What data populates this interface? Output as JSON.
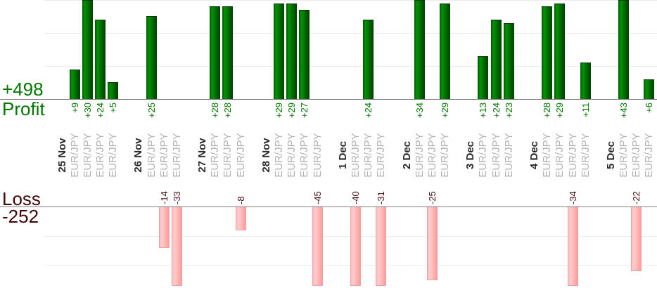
{
  "chart_data": {
    "type": "bar",
    "instrument": "EUR/JPY",
    "profit_title": "Profit",
    "loss_title": "Loss",
    "profit_total": 498,
    "loss_total": -252,
    "profit_total_label": "+498",
    "loss_total_label": "-252",
    "gridline_step": 10,
    "profit_axis_visible_range": [
      0,
      30
    ],
    "loss_axis_visible_range": [
      -27,
      0
    ],
    "legend_position": "none",
    "grid": "on",
    "groups": [
      {
        "date": "25 Nov",
        "trades": [
          {
            "symbol": "EUR/JPY",
            "value": 9,
            "label": "+9"
          },
          {
            "symbol": "EUR/JPY",
            "value": 30,
            "label": "+30"
          },
          {
            "symbol": "EUR/JPY",
            "value": 24,
            "label": "+24"
          },
          {
            "symbol": "EUR/JPY",
            "value": 5,
            "label": "+5"
          }
        ]
      },
      {
        "date": "26 Nov",
        "trades": [
          {
            "symbol": "EUR/JPY",
            "value": 25,
            "label": "+25"
          },
          {
            "symbol": "EUR/JPY",
            "value": -14,
            "label": "-14"
          },
          {
            "symbol": "EUR/JPY",
            "value": -33,
            "label": "-33"
          }
        ]
      },
      {
        "date": "27 Nov",
        "trades": [
          {
            "symbol": "EUR/JPY",
            "value": 28,
            "label": "+28"
          },
          {
            "symbol": "EUR/JPY",
            "value": 28,
            "label": "+28"
          },
          {
            "symbol": "EUR/JPY",
            "value": -8,
            "label": "-8"
          }
        ]
      },
      {
        "date": "28 Nov",
        "trades": [
          {
            "symbol": "EUR/JPY",
            "value": 29,
            "label": "+29"
          },
          {
            "symbol": "EUR/JPY",
            "value": 29,
            "label": "+29"
          },
          {
            "symbol": "EUR/JPY",
            "value": 27,
            "label": "+27"
          },
          {
            "symbol": "EUR/JPY",
            "value": -45,
            "label": "-45"
          }
        ]
      },
      {
        "date": "1 Dec",
        "trades": [
          {
            "symbol": "EUR/JPY",
            "value": -40,
            "label": "-40"
          },
          {
            "symbol": "EUR/JPY",
            "value": 24,
            "label": "+24"
          },
          {
            "symbol": "EUR/JPY",
            "value": -31,
            "label": "-31"
          }
        ]
      },
      {
        "date": "2 Dec",
        "trades": [
          {
            "symbol": "EUR/JPY",
            "value": 34,
            "label": "+34"
          },
          {
            "symbol": "EUR/JPY",
            "value": -25,
            "label": "-25"
          },
          {
            "symbol": "EUR/JPY",
            "value": 29,
            "label": "+29"
          }
        ]
      },
      {
        "date": "3 Dec",
        "trades": [
          {
            "symbol": "EUR/JPY",
            "value": 13,
            "label": "+13"
          },
          {
            "symbol": "EUR/JPY",
            "value": 24,
            "label": "+24"
          },
          {
            "symbol": "EUR/JPY",
            "value": 23,
            "label": "+23"
          }
        ]
      },
      {
        "date": "4 Dec",
        "trades": [
          {
            "symbol": "EUR/JPY",
            "value": 28,
            "label": "+28"
          },
          {
            "symbol": "EUR/JPY",
            "value": 29,
            "label": "+29"
          },
          {
            "symbol": "EUR/JPY",
            "value": -34,
            "label": "-34"
          },
          {
            "symbol": "EUR/JPY",
            "value": 11,
            "label": "+11"
          }
        ]
      },
      {
        "date": "5 Dec",
        "trades": [
          {
            "symbol": "EUR/JPY",
            "value": 43,
            "label": "+43"
          },
          {
            "symbol": "EUR/JPY",
            "value": -22,
            "label": "-22"
          },
          {
            "symbol": "EUR/JPY",
            "value": 6,
            "label": "+6"
          }
        ]
      }
    ],
    "colors": {
      "profit_bar": "#027602",
      "profit_text": "#007800",
      "loss_bar": "#ffb5b5",
      "loss_bar_border": "#f0a2a2",
      "loss_text": "#451010",
      "loss_title_text": "#400707",
      "date_text": "#2b2b2b",
      "symbol_text": "#b2b2b2",
      "axis_line": "#7d7d7d",
      "gridline": "#ebebeb"
    }
  }
}
